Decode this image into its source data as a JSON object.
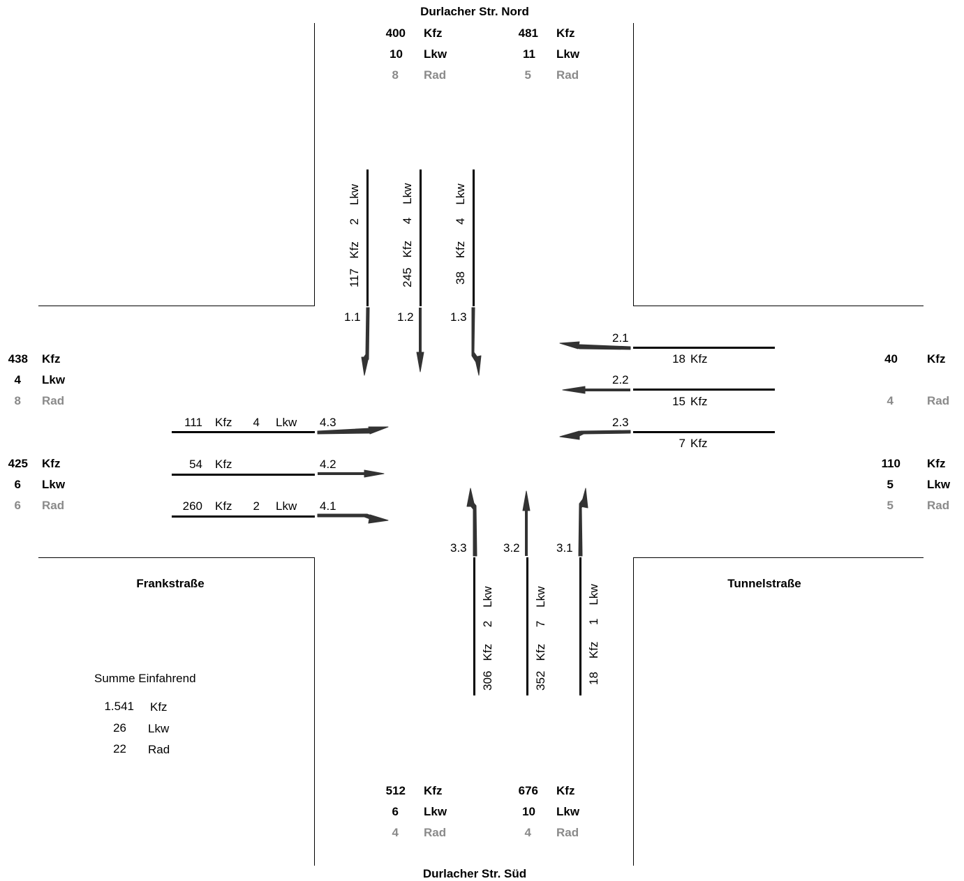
{
  "streets": {
    "north": "Durlacher Str. Nord",
    "south": "Durlacher Str. Süd",
    "west": "Frankstraße",
    "east": "Tunnelstraße"
  },
  "units": {
    "kfz": "Kfz",
    "lkw": "Lkw",
    "rad": "Rad"
  },
  "north": {
    "in": {
      "kfz": "400",
      "lkw": "10",
      "rad": "8"
    },
    "out": {
      "kfz": "481",
      "lkw": "11",
      "rad": "5"
    },
    "lanes": [
      {
        "id": "1.1",
        "kfz": "117",
        "lkw": "2"
      },
      {
        "id": "1.2",
        "kfz": "245",
        "lkw": "4"
      },
      {
        "id": "1.3",
        "kfz": "38",
        "lkw": "4"
      }
    ]
  },
  "south": {
    "in": {
      "kfz": "512",
      "lkw": "6",
      "rad": "4"
    },
    "out": {
      "kfz": "676",
      "lkw": "10",
      "rad": "4"
    },
    "lanes": [
      {
        "id": "3.3",
        "kfz": "306",
        "lkw": "2"
      },
      {
        "id": "3.2",
        "kfz": "352",
        "lkw": "7"
      },
      {
        "id": "3.1",
        "kfz": "18",
        "lkw": "1"
      }
    ]
  },
  "west": {
    "top": {
      "kfz": "438",
      "lkw": "4",
      "rad": "8"
    },
    "bottom": {
      "kfz": "425",
      "lkw": "6",
      "rad": "6"
    },
    "lanes": [
      {
        "id": "4.3",
        "kfz": "111",
        "lkw": "4"
      },
      {
        "id": "4.2",
        "kfz": "54",
        "lkw": ""
      },
      {
        "id": "4.1",
        "kfz": "260",
        "lkw": "2"
      }
    ]
  },
  "east": {
    "top": {
      "kfz": "40",
      "rad": "4"
    },
    "bottom": {
      "kfz": "110",
      "lkw": "5",
      "rad": "5"
    },
    "lanes": [
      {
        "id": "2.1",
        "kfz": "18"
      },
      {
        "id": "2.2",
        "kfz": "15"
      },
      {
        "id": "2.3",
        "kfz": "7"
      }
    ]
  },
  "summary": {
    "title": "Summe Einfahrend",
    "kfz": "1.541",
    "lkw": "26",
    "rad": "22"
  },
  "colors": {
    "text": "#000000",
    "muted": "#8a8a8a",
    "lines": "#000000"
  }
}
